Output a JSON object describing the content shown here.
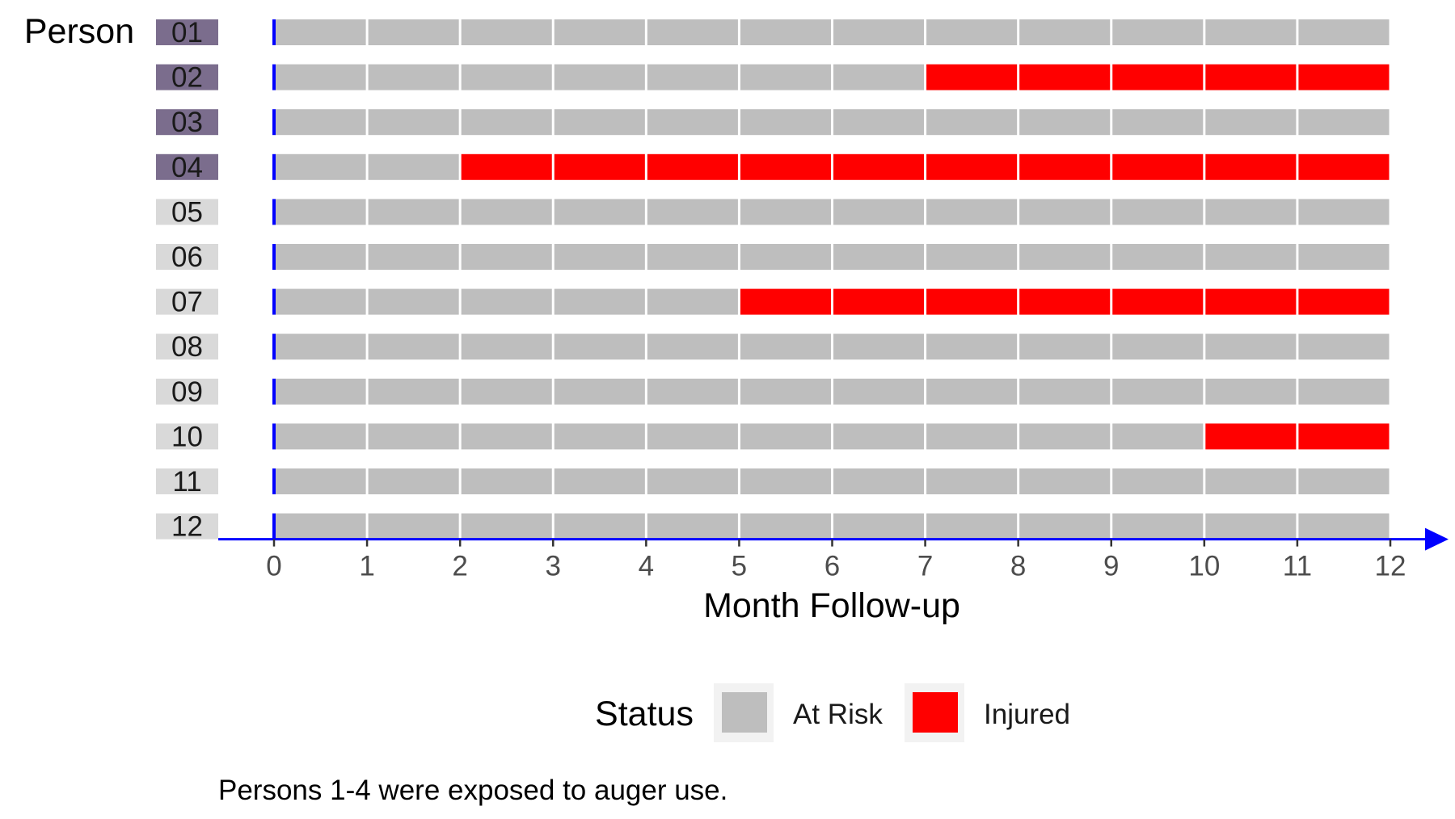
{
  "chart_data": {
    "type": "bar",
    "ylabel": "Person",
    "xlabel": "Month Follow-up",
    "categories": [
      "01",
      "02",
      "03",
      "04",
      "05",
      "06",
      "07",
      "08",
      "09",
      "10",
      "11",
      "12"
    ],
    "exposed_rows": [
      "01",
      "02",
      "03",
      "04"
    ],
    "x_ticks": [
      0,
      1,
      2,
      3,
      4,
      5,
      6,
      7,
      8,
      9,
      10,
      11,
      12
    ],
    "xlim": [
      0,
      12
    ],
    "months_per_person": 12,
    "injury_start_month": {
      "02": 7,
      "04": 2,
      "07": 5,
      "10": 10
    },
    "status_levels": [
      "At Risk",
      "Injured"
    ],
    "legend": {
      "title": "Status",
      "position": "bottom",
      "items": [
        "At Risk",
        "Injured"
      ]
    },
    "caption": "Persons 1-4 were exposed to auger use."
  },
  "colors": {
    "at_risk": "#bebebe",
    "injured": "#ff0000",
    "axis": "#0000ff",
    "exposed_label_bg": "#7b6d8d",
    "unexposed_label_bg": "#d9d9d9",
    "legend_key_bg": "#f2f2f2"
  }
}
